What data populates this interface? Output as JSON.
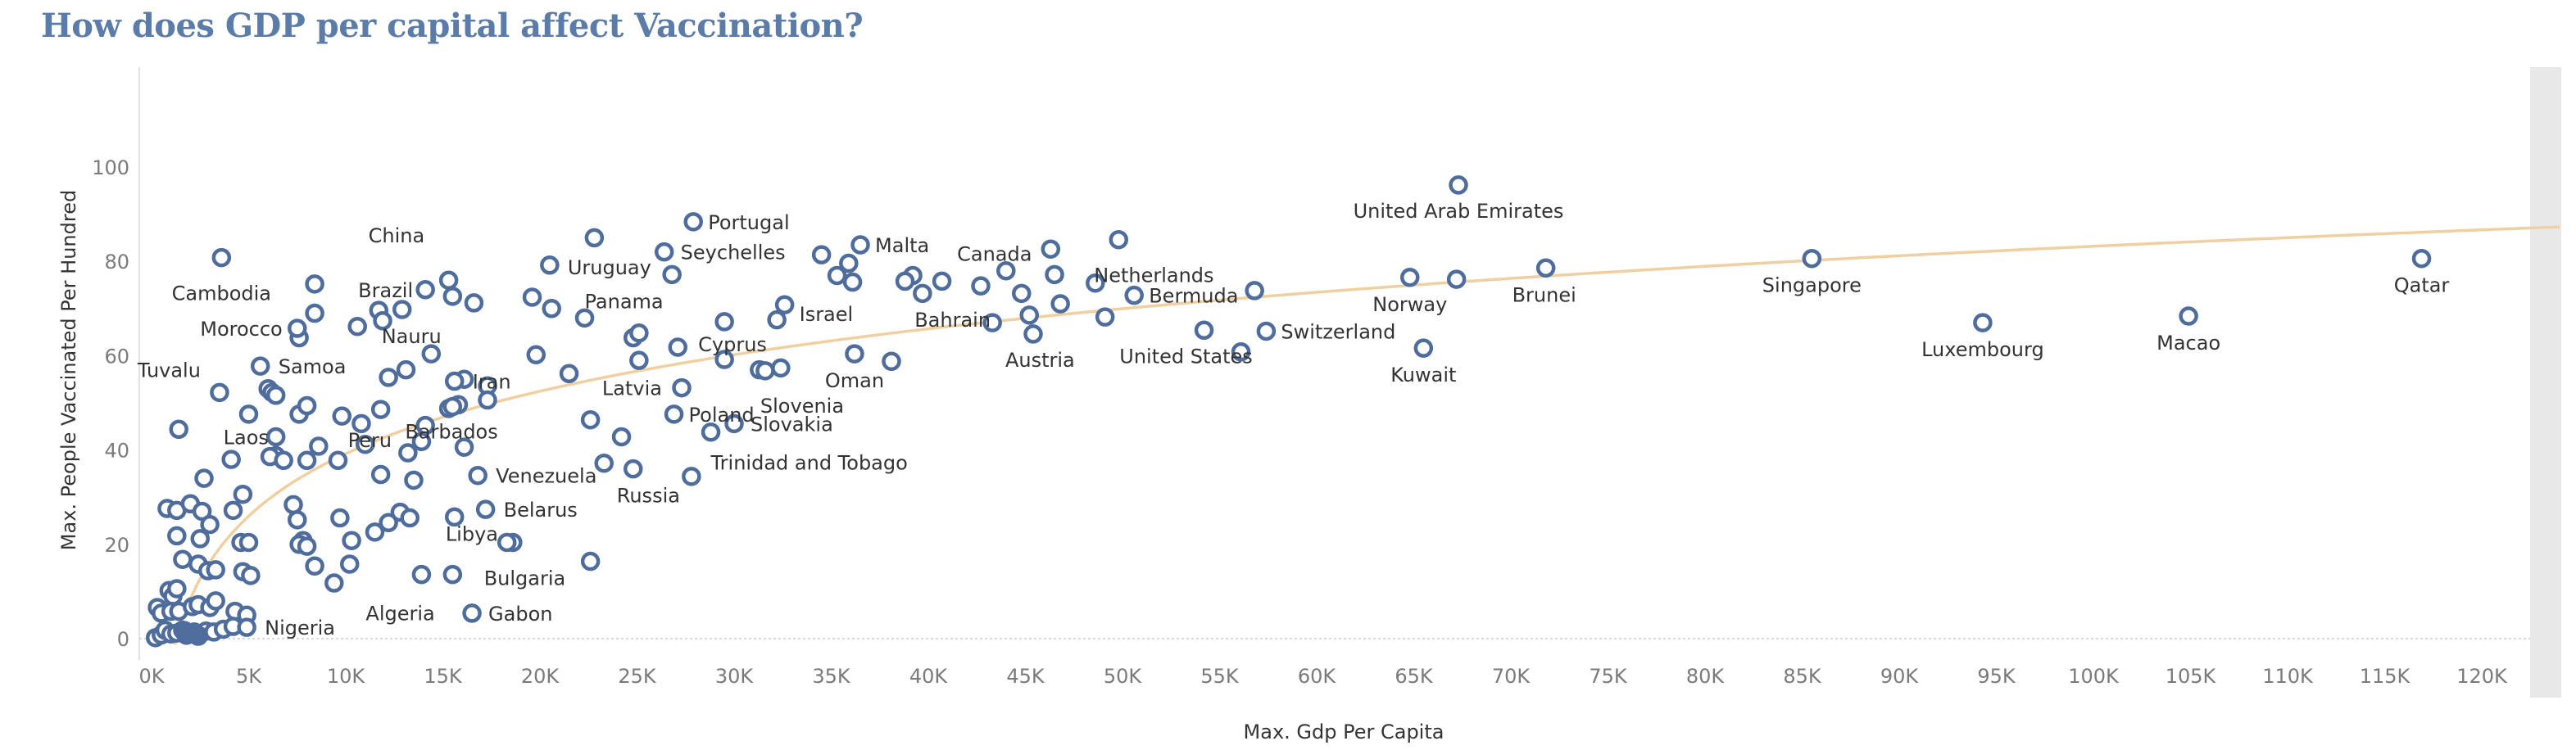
{
  "title": "How does GDP per capital affect Vaccination?",
  "chart_data": {
    "type": "scatter",
    "title": "How does GDP per capital affect Vaccination?",
    "xlabel": "Max. Gdp Per Capita",
    "ylabel": "Max. People Vaccinated Per Hundred",
    "xlim": [
      -1000,
      124000
    ],
    "ylim": [
      -4,
      104
    ],
    "x_ticks": [
      "0K",
      "5K",
      "10K",
      "15K",
      "20K",
      "25K",
      "30K",
      "35K",
      "40K",
      "45K",
      "50K",
      "55K",
      "60K",
      "65K",
      "70K",
      "75K",
      "80K",
      "85K",
      "90K",
      "95K",
      "100K",
      "105K",
      "110K",
      "115K",
      "120K"
    ],
    "x_tick_values": [
      0,
      5000,
      10000,
      15000,
      20000,
      25000,
      30000,
      35000,
      40000,
      45000,
      50000,
      55000,
      60000,
      65000,
      70000,
      75000,
      80000,
      85000,
      90000,
      95000,
      100000,
      105000,
      110000,
      115000,
      120000
    ],
    "y_ticks": [
      "0",
      "20",
      "40",
      "60",
      "80",
      "100"
    ],
    "y_tick_values": [
      0,
      20,
      40,
      60,
      80,
      100
    ],
    "grid": false,
    "trend_line": {
      "type": "logarithmic",
      "color": "#f0cfa0"
    },
    "colors": {
      "point": "#4e6c9c",
      "title": "#5b7ba9",
      "trend": "#f0cfa0",
      "zero_line": "#cccccc"
    },
    "labeled_points": [
      {
        "label": "United Arab Emirates",
        "x": 67300,
        "y": 96.2
      },
      {
        "label": "Portugal",
        "x": 27900,
        "y": 88.4
      },
      {
        "label": "Malta",
        "x": 36500,
        "y": 83.5
      },
      {
        "label": "Canada",
        "x": 44000,
        "y": 78.0
      },
      {
        "label": "Seychelles",
        "x": 26400,
        "y": 82.0
      },
      {
        "label": "Netherlands",
        "x": 49800,
        "y": 84.6
      },
      {
        "label": "China",
        "x": 15300,
        "y": 76.0
      },
      {
        "label": "Uruguay",
        "x": 20500,
        "y": 79.2
      },
      {
        "label": "Cambodia",
        "x": 3600,
        "y": 80.8
      },
      {
        "label": "Brazil",
        "x": 14100,
        "y": 74.0
      },
      {
        "label": "Panama",
        "x": 22300,
        "y": 68.0
      },
      {
        "label": "Israel",
        "x": 32600,
        "y": 70.8
      },
      {
        "label": "Bermuda",
        "x": 50600,
        "y": 72.8
      },
      {
        "label": "Norway",
        "x": 64800,
        "y": 76.6
      },
      {
        "label": "Brunei",
        "x": 71800,
        "y": 78.6
      },
      {
        "label": "Singapore",
        "x": 85500,
        "y": 80.6
      },
      {
        "label": "Qatar",
        "x": 116900,
        "y": 80.6
      },
      {
        "label": "Bahrain",
        "x": 43300,
        "y": 67.0
      },
      {
        "label": "Nauru",
        "x": 12900,
        "y": 69.8
      },
      {
        "label": "Morocco",
        "x": 7500,
        "y": 65.8
      },
      {
        "label": "Austria",
        "x": 45400,
        "y": 64.6
      },
      {
        "label": "United States",
        "x": 54200,
        "y": 65.4
      },
      {
        "label": "Switzerland",
        "x": 57400,
        "y": 65.2
      },
      {
        "label": "Luxembourg",
        "x": 94300,
        "y": 67.0
      },
      {
        "label": "Macao",
        "x": 104900,
        "y": 68.4
      },
      {
        "label": "Kuwait",
        "x": 65500,
        "y": 61.6
      },
      {
        "label": "Cyprus",
        "x": 29500,
        "y": 59.2
      },
      {
        "label": "Oman",
        "x": 36200,
        "y": 60.4
      },
      {
        "label": "Samoa",
        "x": 5600,
        "y": 57.8
      },
      {
        "label": "Tuvalu",
        "x": 3500,
        "y": 52.2
      },
      {
        "label": "Iran",
        "x": 15600,
        "y": 54.6
      },
      {
        "label": "Latvia",
        "x": 27300,
        "y": 53.2
      },
      {
        "label": "Slovenia",
        "x": 31600,
        "y": 56.8
      },
      {
        "label": "Peru",
        "x": 11800,
        "y": 48.6
      },
      {
        "label": "Poland",
        "x": 26900,
        "y": 47.6
      },
      {
        "label": "Barbados",
        "x": 15500,
        "y": 49.2
      },
      {
        "label": "Slovakia",
        "x": 30000,
        "y": 45.6
      },
      {
        "label": "Laos",
        "x": 6400,
        "y": 42.8
      },
      {
        "label": "Trinidad and Tobago",
        "x": 28800,
        "y": 43.8
      },
      {
        "label": "Venezuela",
        "x": 16800,
        "y": 34.6
      },
      {
        "label": "Russia",
        "x": 24800,
        "y": 36.0
      },
      {
        "label": "Belarus",
        "x": 17200,
        "y": 27.4
      },
      {
        "label": "Libya",
        "x": 18600,
        "y": 20.4
      },
      {
        "label": "Bulgaria",
        "x": 18300,
        "y": 20.4
      },
      {
        "label": "Algeria",
        "x": 13900,
        "y": 13.6
      },
      {
        "label": "Gabon",
        "x": 16500,
        "y": 5.4
      },
      {
        "label": "Nigeria",
        "x": 4900,
        "y": 2.4
      }
    ],
    "unlabeled_points": [
      {
        "x": 22800,
        "y": 85.0
      },
      {
        "x": 26800,
        "y": 77.2
      },
      {
        "x": 34500,
        "y": 81.4
      },
      {
        "x": 35300,
        "y": 77.0
      },
      {
        "x": 35900,
        "y": 79.6
      },
      {
        "x": 36100,
        "y": 75.6
      },
      {
        "x": 39200,
        "y": 77.0
      },
      {
        "x": 38800,
        "y": 75.8
      },
      {
        "x": 39700,
        "y": 73.2
      },
      {
        "x": 40700,
        "y": 75.8
      },
      {
        "x": 42700,
        "y": 74.8
      },
      {
        "x": 44800,
        "y": 73.2
      },
      {
        "x": 46300,
        "y": 82.6
      },
      {
        "x": 46500,
        "y": 77.2
      },
      {
        "x": 46800,
        "y": 71.0
      },
      {
        "x": 48600,
        "y": 75.4
      },
      {
        "x": 45200,
        "y": 68.6
      },
      {
        "x": 49100,
        "y": 68.2
      },
      {
        "x": 56800,
        "y": 73.8
      },
      {
        "x": 56100,
        "y": 60.8
      },
      {
        "x": 67200,
        "y": 76.2
      },
      {
        "x": 19600,
        "y": 72.4
      },
      {
        "x": 20600,
        "y": 70.0
      },
      {
        "x": 15500,
        "y": 72.6
      },
      {
        "x": 16600,
        "y": 71.2
      },
      {
        "x": 11700,
        "y": 69.6
      },
      {
        "x": 11900,
        "y": 67.4
      },
      {
        "x": 10600,
        "y": 66.2
      },
      {
        "x": 8400,
        "y": 75.2
      },
      {
        "x": 8400,
        "y": 69.0
      },
      {
        "x": 7600,
        "y": 63.8
      },
      {
        "x": 13100,
        "y": 57.0
      },
      {
        "x": 14400,
        "y": 60.4
      },
      {
        "x": 19800,
        "y": 60.2
      },
      {
        "x": 21500,
        "y": 56.2
      },
      {
        "x": 24800,
        "y": 63.8
      },
      {
        "x": 25100,
        "y": 64.8
      },
      {
        "x": 25100,
        "y": 59.0
      },
      {
        "x": 27100,
        "y": 61.8
      },
      {
        "x": 29500,
        "y": 67.2
      },
      {
        "x": 32200,
        "y": 67.6
      },
      {
        "x": 31300,
        "y": 57.0
      },
      {
        "x": 32400,
        "y": 57.4
      },
      {
        "x": 38100,
        "y": 58.8
      },
      {
        "x": 12200,
        "y": 55.4
      },
      {
        "x": 16100,
        "y": 55.0
      },
      {
        "x": 17300,
        "y": 53.6
      },
      {
        "x": 17300,
        "y": 50.6
      },
      {
        "x": 15800,
        "y": 49.6
      },
      {
        "x": 15300,
        "y": 48.8
      },
      {
        "x": 6000,
        "y": 53.0
      },
      {
        "x": 6200,
        "y": 52.2
      },
      {
        "x": 6400,
        "y": 51.6
      },
      {
        "x": 7600,
        "y": 47.6
      },
      {
        "x": 8000,
        "y": 49.4
      },
      {
        "x": 9800,
        "y": 47.2
      },
      {
        "x": 10800,
        "y": 45.6
      },
      {
        "x": 14100,
        "y": 45.2
      },
      {
        "x": 5000,
        "y": 47.6
      },
      {
        "x": 1400,
        "y": 44.4
      },
      {
        "x": 6400,
        "y": 38.8
      },
      {
        "x": 6100,
        "y": 38.6
      },
      {
        "x": 6800,
        "y": 37.8
      },
      {
        "x": 8000,
        "y": 37.8
      },
      {
        "x": 9600,
        "y": 37.8
      },
      {
        "x": 8600,
        "y": 40.8
      },
      {
        "x": 11000,
        "y": 41.2
      },
      {
        "x": 13900,
        "y": 41.8
      },
      {
        "x": 13200,
        "y": 39.4
      },
      {
        "x": 16100,
        "y": 40.6
      },
      {
        "x": 22600,
        "y": 46.4
      },
      {
        "x": 24200,
        "y": 42.8
      },
      {
        "x": 23300,
        "y": 37.2
      },
      {
        "x": 27800,
        "y": 34.4
      },
      {
        "x": 4100,
        "y": 38.0
      },
      {
        "x": 2700,
        "y": 34.0
      },
      {
        "x": 4700,
        "y": 30.6
      },
      {
        "x": 11800,
        "y": 34.8
      },
      {
        "x": 13500,
        "y": 33.6
      },
      {
        "x": 800,
        "y": 27.6
      },
      {
        "x": 1300,
        "y": 27.2
      },
      {
        "x": 2000,
        "y": 28.6
      },
      {
        "x": 2600,
        "y": 27.0
      },
      {
        "x": 4200,
        "y": 27.2
      },
      {
        "x": 7300,
        "y": 28.4
      },
      {
        "x": 7500,
        "y": 25.2
      },
      {
        "x": 9700,
        "y": 25.6
      },
      {
        "x": 12200,
        "y": 24.6
      },
      {
        "x": 12800,
        "y": 26.8
      },
      {
        "x": 13300,
        "y": 25.6
      },
      {
        "x": 15600,
        "y": 25.8
      },
      {
        "x": 3000,
        "y": 24.2
      },
      {
        "x": 1300,
        "y": 21.8
      },
      {
        "x": 2500,
        "y": 21.2
      },
      {
        "x": 4600,
        "y": 20.4
      },
      {
        "x": 5000,
        "y": 20.4
      },
      {
        "x": 7800,
        "y": 20.8
      },
      {
        "x": 7600,
        "y": 20.0
      },
      {
        "x": 8000,
        "y": 19.6
      },
      {
        "x": 10300,
        "y": 20.8
      },
      {
        "x": 11500,
        "y": 22.6
      },
      {
        "x": 1600,
        "y": 16.8
      },
      {
        "x": 2400,
        "y": 15.8
      },
      {
        "x": 2900,
        "y": 14.4
      },
      {
        "x": 3300,
        "y": 14.6
      },
      {
        "x": 4700,
        "y": 14.2
      },
      {
        "x": 5100,
        "y": 13.4
      },
      {
        "x": 8400,
        "y": 15.4
      },
      {
        "x": 10200,
        "y": 15.8
      },
      {
        "x": 9400,
        "y": 11.8
      },
      {
        "x": 15500,
        "y": 13.6
      },
      {
        "x": 22600,
        "y": 16.4
      },
      {
        "x": 900,
        "y": 10.2
      },
      {
        "x": 1100,
        "y": 9.0
      },
      {
        "x": 1300,
        "y": 10.6
      },
      {
        "x": 300,
        "y": 6.6
      },
      {
        "x": 500,
        "y": 5.4
      },
      {
        "x": 1000,
        "y": 5.8
      },
      {
        "x": 1400,
        "y": 5.8
      },
      {
        "x": 2100,
        "y": 6.8
      },
      {
        "x": 2400,
        "y": 7.2
      },
      {
        "x": 3000,
        "y": 6.6
      },
      {
        "x": 3300,
        "y": 8.0
      },
      {
        "x": 4300,
        "y": 5.8
      },
      {
        "x": 4900,
        "y": 5.0
      },
      {
        "x": 200,
        "y": 0.2
      },
      {
        "x": 500,
        "y": 0.8
      },
      {
        "x": 700,
        "y": 1.8
      },
      {
        "x": 1000,
        "y": 1.0
      },
      {
        "x": 1300,
        "y": 1.2
      },
      {
        "x": 1600,
        "y": 1.8
      },
      {
        "x": 2200,
        "y": 1.4
      },
      {
        "x": 2800,
        "y": 1.6
      },
      {
        "x": 3200,
        "y": 1.4
      },
      {
        "x": 3700,
        "y": 2.0
      },
      {
        "x": 4200,
        "y": 2.6
      }
    ]
  }
}
